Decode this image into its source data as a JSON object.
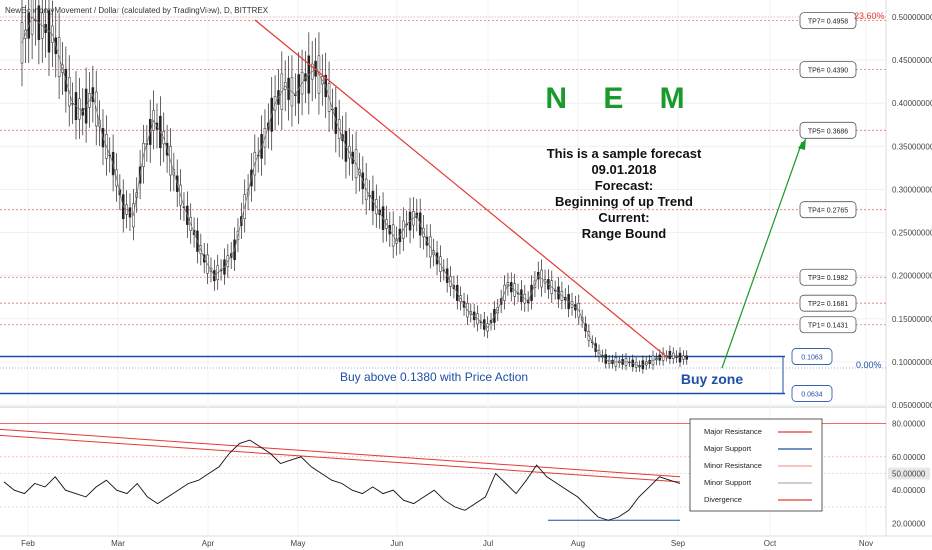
{
  "header": {
    "title": "NewEconomyMovement / Dollar (calculated by TradingView), D, BITTREX"
  },
  "annotations": {
    "coin": "N E M",
    "forecast_lines": [
      "This is a sample forecast",
      "09.01.2018",
      "Forecast:",
      "Beginning of up Trend",
      "Current:",
      "Range Bound"
    ],
    "buy_above": "Buy above 0.1380 with Price Action",
    "buy_zone": "Buy zone",
    "pct_top": "23.60%",
    "pct_zero": "0.00%"
  },
  "colors": {
    "green": "#1a9a2a",
    "blue": "#1f4ea8",
    "red": "#e53935",
    "resistance_dotted": "#e57373",
    "gray": "#888888"
  },
  "chart_data": [
    {
      "type": "line",
      "panel": "price",
      "title": "NewEconomyMovement / Dollar (calculated by TradingView), D, BITTREX",
      "x_ticks": [
        "Feb",
        "Mar",
        "Apr",
        "May",
        "Jun",
        "Jul",
        "Aug",
        "Sep",
        "Oct",
        "Nov"
      ],
      "y_ticks": [
        "0.50000000",
        "0.45000000",
        "0.40000000",
        "0.35000000",
        "0.30000000",
        "0.25000000",
        "0.20000000",
        "0.15000000",
        "0.10000000",
        "0.05000000"
      ],
      "ylim": [
        0.05,
        0.5
      ],
      "targets": [
        {
          "label": "TP7= 0.4958",
          "value": 0.4958
        },
        {
          "label": "TP6= 0.4390",
          "value": 0.439
        },
        {
          "label": "TP5= 0.3686",
          "value": 0.3686
        },
        {
          "label": "TP4= 0.2765",
          "value": 0.2765
        },
        {
          "label": "TP3= 0.1982",
          "value": 0.1982
        },
        {
          "label": "TP2= 0.1681",
          "value": 0.1681
        },
        {
          "label": "TP1= 0.1431",
          "value": 0.1431
        }
      ],
      "zone": {
        "top_label": "0.1063",
        "top": 0.1063,
        "bottom_label": "0.0634",
        "bottom": 0.0634
      },
      "series": [
        {
          "values": [
            0.47,
            0.5,
            0.49,
            0.48,
            0.44,
            0.4,
            0.39,
            0.41,
            0.36,
            0.33,
            0.28,
            0.27,
            0.34,
            0.38,
            0.36,
            0.32,
            0.28,
            0.25,
            0.22,
            0.2,
            0.21,
            0.23,
            0.28,
            0.33,
            0.36,
            0.4,
            0.42,
            0.41,
            0.43,
            0.44,
            0.42,
            0.38,
            0.35,
            0.33,
            0.3,
            0.28,
            0.26,
            0.24,
            0.26,
            0.27,
            0.24,
            0.22,
            0.2,
            0.18,
            0.16,
            0.15,
            0.14,
            0.16,
            0.19,
            0.18,
            0.17,
            0.2,
            0.19,
            0.18,
            0.17,
            0.16,
            0.13,
            0.11,
            0.1,
            0.1,
            0.1,
            0.095,
            0.1,
            0.105,
            0.108,
            0.105
          ]
        }
      ]
    },
    {
      "type": "line",
      "panel": "oscillator",
      "y_ticks": [
        "80.00000",
        "60.00000",
        "50.00000",
        "40.00000",
        "20.00000"
      ],
      "ylim": [
        15,
        85
      ],
      "legend": [
        {
          "label": "Major Resistance",
          "color": "#e53935"
        },
        {
          "label": "Major Support",
          "color": "#1f4ea8"
        },
        {
          "label": "Minor Resistance",
          "color": "#f5a0a0"
        },
        {
          "label": "Minor Support",
          "color": "#b0b0b0"
        },
        {
          "label": "Divergence",
          "color": "#e53935"
        }
      ],
      "series": [
        {
          "values": [
            45,
            40,
            38,
            44,
            42,
            48,
            40,
            38,
            36,
            42,
            46,
            40,
            38,
            44,
            36,
            32,
            36,
            40,
            44,
            46,
            50,
            54,
            62,
            68,
            70,
            66,
            62,
            56,
            58,
            60,
            54,
            50,
            46,
            44,
            40,
            38,
            42,
            38,
            40,
            34,
            32,
            36,
            40,
            34,
            30,
            28,
            32,
            36,
            50,
            44,
            38,
            46,
            55,
            48,
            44,
            40,
            36,
            30,
            24,
            22,
            24,
            28,
            36,
            42,
            48,
            46,
            44
          ]
        }
      ]
    }
  ]
}
